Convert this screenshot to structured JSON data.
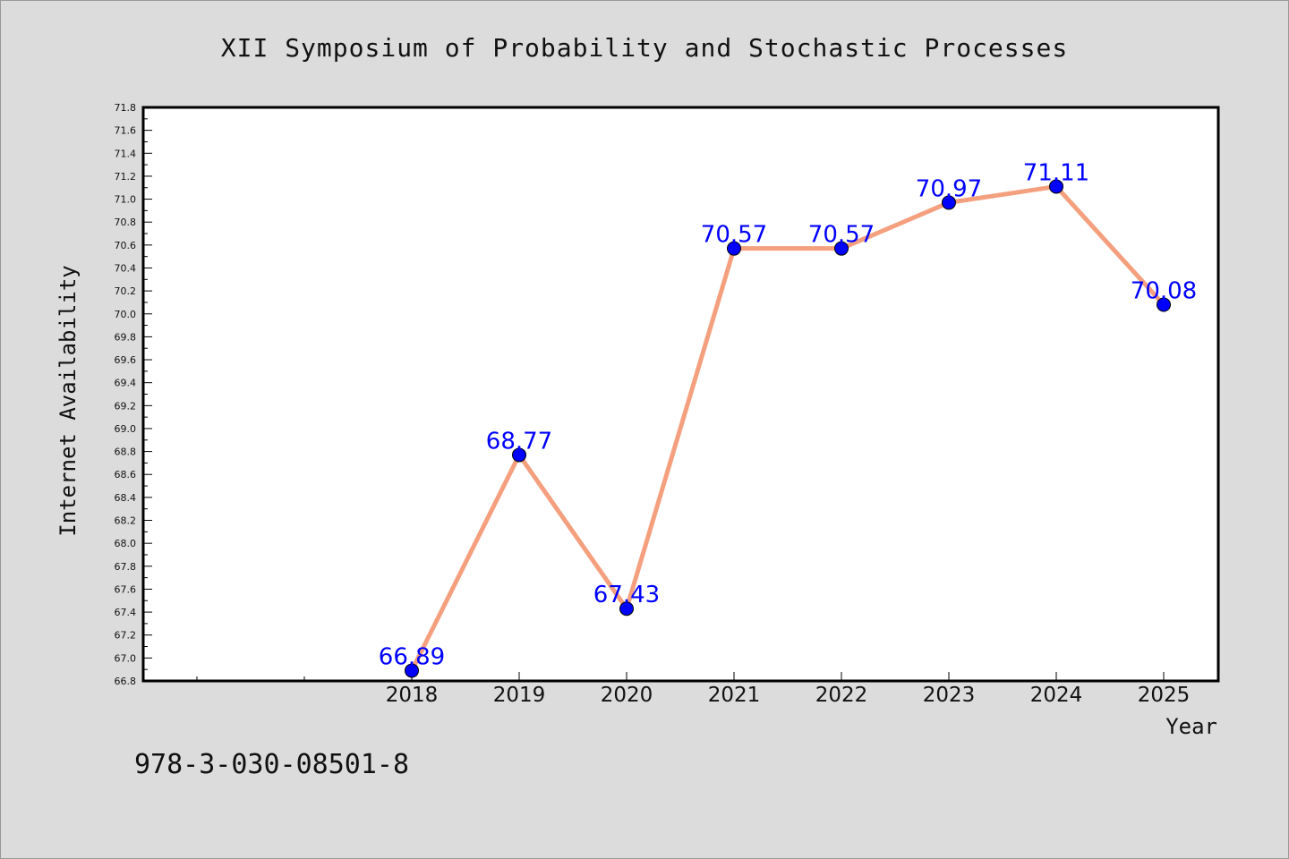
{
  "chart_data": {
    "type": "line",
    "title": "XII Symposium of Probability and Stochastic Processes",
    "xlabel": "Year",
    "ylabel": "Internet Availability",
    "categories": [
      "2018",
      "2019",
      "2020",
      "2021",
      "2022",
      "2023",
      "2024",
      "2025"
    ],
    "series": [
      {
        "values": [
          66.89,
          68.77,
          67.43,
          70.57,
          70.57,
          70.97,
          71.11,
          70.08
        ]
      }
    ],
    "data_labels": [
      "66.89",
      "68.77",
      "67.43",
      "70.57",
      "70.57",
      "70.97",
      "71.11",
      "70.08"
    ],
    "ylim": [
      66.8,
      71.8
    ],
    "ytick_labels": [
      "66.8",
      "67.0",
      "67.2",
      "67.4",
      "67.6",
      "67.8",
      "68.0",
      "68.2",
      "68.4",
      "68.6",
      "68.8",
      "69.0",
      "69.2",
      "69.4",
      "69.6",
      "69.8",
      "70.0",
      "70.2",
      "70.4",
      "70.6",
      "70.8",
      "71.0",
      "71.2",
      "71.4",
      "71.6",
      "71.8"
    ],
    "grid": false,
    "line_color": "#f4a07e",
    "marker_color": "#0000ff",
    "label_color": "#0000ff",
    "background_color": "#dcdcdc",
    "plot_background": "#ffffff"
  },
  "footer": {
    "isbn": "978-3-030-08501-8"
  }
}
